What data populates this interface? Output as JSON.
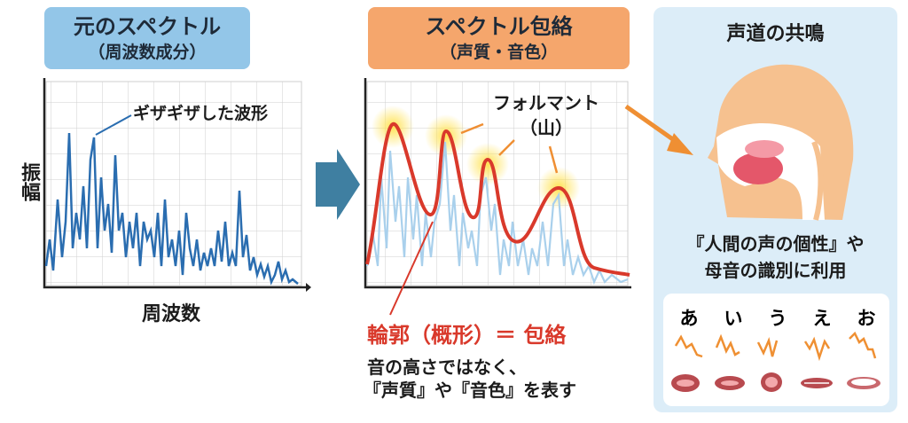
{
  "left_panel": {
    "title": "元のスペクトル",
    "subtitle": "（周波数成分）",
    "annotation": "ギザギザした波形",
    "ylabel": "振幅",
    "xlabel": "周波数"
  },
  "middle_panel": {
    "title": "スペクトル包絡",
    "subtitle": "（声質・音色）",
    "formant_label": "フォルマント",
    "formant_sub": "（山）",
    "envelope_label": "輪郭（概形）＝ 包絡",
    "desc_line1": "音の高さではなく、",
    "desc_line2": "『声質』や『音色』を表す"
  },
  "right_panel": {
    "title": "声道の共鳴",
    "desc_line1": "『人間の声の個性』や",
    "desc_line2": "母音の識別に利用",
    "vowels": [
      "あ",
      "い",
      "う",
      "え",
      "お"
    ]
  },
  "colors": {
    "blue_header": "#93c6e8",
    "orange_header": "#f5a66c",
    "spectrum": "#2a6db0",
    "envelope": "#d9392b",
    "arrow": "#3f7fa1",
    "panel_bg": "#dcedf8"
  }
}
